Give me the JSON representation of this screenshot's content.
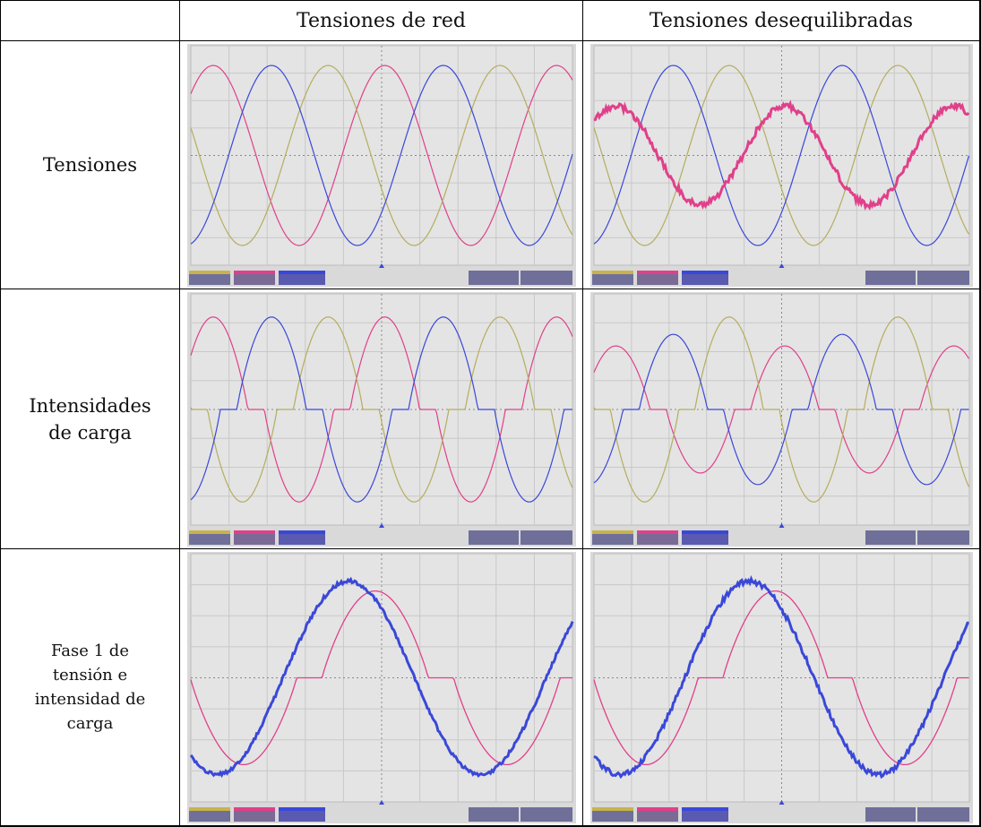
{
  "table": {
    "columns": [
      "Tensiones de red",
      "Tensiones desequilibradas"
    ],
    "rows": [
      {
        "label_lines": [
          "Tensiones"
        ]
      },
      {
        "label_lines": [
          "Intensidades",
          "de carga"
        ]
      },
      {
        "label_lines": [
          "Fase 1 de",
          "tensión e",
          "intensidad de",
          "carga"
        ]
      }
    ]
  }
}
